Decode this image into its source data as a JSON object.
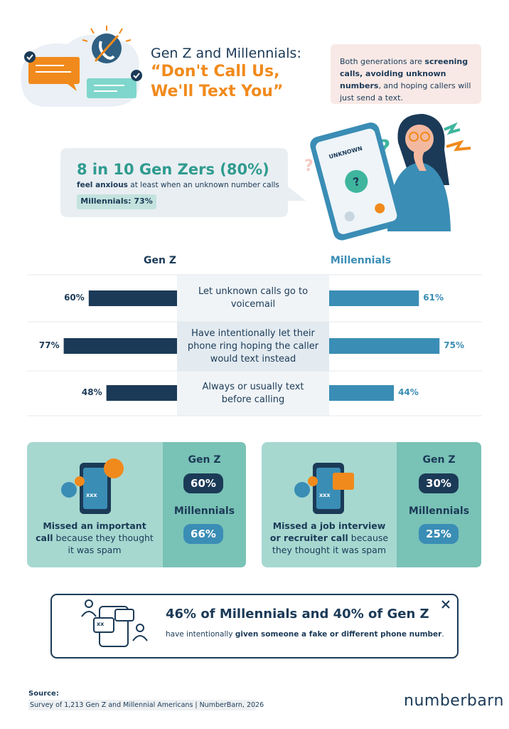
{
  "header": {
    "title_line1": "Gen Z and Millennials:",
    "title_line2": "“Don't Call Us,",
    "title_line3": "We'll Text You”",
    "intro": [
      "Both generations are ",
      "screening calls, avoiding unknown numbers",
      ", and hoping callers will just send a text."
    ]
  },
  "stat": {
    "headline": "8 in 10 Gen Zers (80%)",
    "sub": [
      "feel anxious",
      " at least when an unknown number calls"
    ],
    "badge": "Millennials: 73%",
    "phone_label": "UNKNOWN"
  },
  "chart_data": {
    "type": "butterfly",
    "categories": [
      "Let unknown calls go to voicemail",
      "Have intentionally let their phone ring hoping the caller would text instead",
      "Always or usually text before calling"
    ],
    "series": [
      {
        "name": "Gen Z",
        "color": "#1b3a57",
        "values": [
          60,
          77,
          48
        ],
        "value_labels": [
          "60%",
          "77%",
          "48%"
        ]
      },
      {
        "name": "Millennials",
        "color": "#3a8db5",
        "values": [
          61,
          75,
          44
        ],
        "value_labels": [
          "61%",
          "75%",
          "44%"
        ]
      }
    ]
  },
  "cards": [
    {
      "text": [
        "Missed an important call",
        " because they thought it was spam"
      ],
      "icon_text": "xxx",
      "groups": [
        {
          "label": "Gen Z",
          "value": "60%"
        },
        {
          "label": "Millennials",
          "value": "66%"
        }
      ]
    },
    {
      "text": [
        "Missed a job interview or recruiter call",
        " because they thought it was spam"
      ],
      "icon_text": "xxx",
      "groups": [
        {
          "label": "Gen Z",
          "value": "30%"
        },
        {
          "label": "Millennials",
          "value": "25%"
        }
      ]
    }
  ],
  "callout": {
    "headline": "46% of Millennials and 40% of Gen Z",
    "sub": [
      "have intentionally ",
      "given someone a fake or different phone number",
      "."
    ],
    "icon_text": "xx"
  },
  "footer": {
    "source_label": "Source:",
    "source": "Survey of 1,213 Gen Z and Millennial Americans | NumberBarn, 2026",
    "logo": "numberbarn"
  }
}
